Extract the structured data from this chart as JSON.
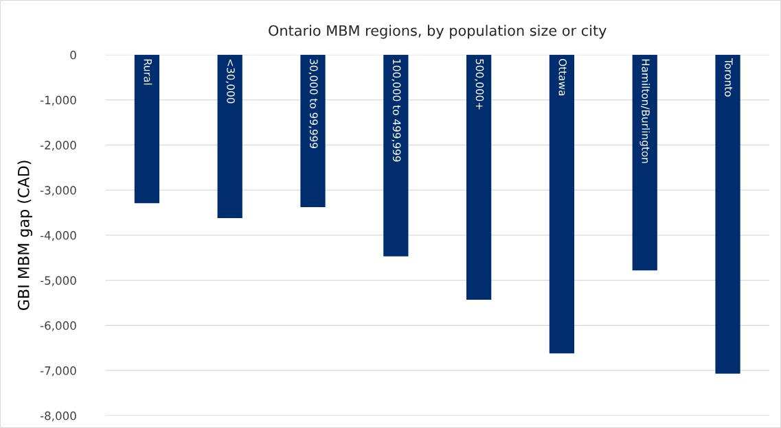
{
  "chart_data": {
    "type": "bar",
    "title": "Ontario MBM regions, by population size or city",
    "ylabel": "GBI MBM gap (CAD)",
    "categories": [
      "Rural",
      "<30,000",
      "30,000 to 99,999",
      "100,000 to 499,999",
      "500,000+",
      "Ottawa",
      "Hamilton/Burlington",
      "Toronto"
    ],
    "values": [
      -3290,
      -3620,
      -3380,
      -4470,
      -5430,
      -6620,
      -4780,
      -7070
    ],
    "color": "#002d6e",
    "ylim": [
      -8000,
      0
    ],
    "yticks": [
      {
        "value": -8000,
        "label": "-8,000"
      },
      {
        "value": -7000,
        "label": "-7,000"
      },
      {
        "value": -6000,
        "label": "-6,000"
      },
      {
        "value": -5000,
        "label": "-5,000"
      },
      {
        "value": -4000,
        "label": "-4,000"
      },
      {
        "value": -3000,
        "label": "-3,000"
      },
      {
        "value": -2000,
        "label": "-2,000"
      },
      {
        "value": -1000,
        "label": "-1,000"
      },
      0
    ],
    "grid": "y",
    "legend": false
  }
}
